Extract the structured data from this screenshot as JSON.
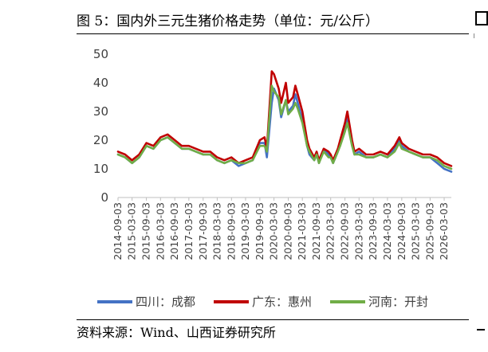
{
  "figure": {
    "title": "图 5：国内外三元生猪价格走势（单位：元/公斤）",
    "source": "资料来源：Wind、山西证券研究所"
  },
  "chart_data": {
    "type": "line",
    "title": "",
    "xlabel": "",
    "ylabel": "",
    "ylim": [
      0,
      50
    ],
    "y_ticks": [
      "0",
      "10",
      "20",
      "30",
      "40",
      "50"
    ],
    "x_ticks": [
      "2014-09-03",
      "2015-03-03",
      "2015-09-03",
      "2016-03-03",
      "2016-09-03",
      "2017-03-03",
      "2017-09-03",
      "2018-03-03",
      "2018-09-03",
      "2019-03-03",
      "2019-09-03",
      "2020-03-03",
      "2020-09-03",
      "2021-03-03",
      "2021-09-03",
      "2022-03-03",
      "2022-09-03",
      "2023-03-03",
      "2023-09-03",
      "2024-03-03",
      "2024-09-03",
      "2025-03-03",
      "2025-09-03",
      "2026-03-03"
    ],
    "x": [
      "2014-09-03",
      "2014-12-03",
      "2015-03-03",
      "2015-06-03",
      "2015-09-03",
      "2015-12-03",
      "2016-03-03",
      "2016-06-03",
      "2016-09-03",
      "2016-12-03",
      "2017-03-03",
      "2017-06-03",
      "2017-09-03",
      "2017-12-03",
      "2018-03-03",
      "2018-06-03",
      "2018-09-03",
      "2018-12-03",
      "2019-03-03",
      "2019-06-03",
      "2019-09-03",
      "2019-11-03",
      "2019-12-03",
      "2020-02-03",
      "2020-03-03",
      "2020-05-03",
      "2020-06-03",
      "2020-08-03",
      "2020-09-03",
      "2020-11-03",
      "2020-12-03",
      "2021-01-03",
      "2021-03-03",
      "2021-05-03",
      "2021-06-03",
      "2021-08-03",
      "2021-09-03",
      "2021-10-03",
      "2021-12-03",
      "2022-02-03",
      "2022-03-03",
      "2022-04-03",
      "2022-06-03",
      "2022-07-03",
      "2022-09-03",
      "2022-10-03",
      "2022-12-03",
      "2023-01-03",
      "2023-03-03",
      "2023-06-03",
      "2023-09-03",
      "2023-12-03",
      "2024-03-03",
      "2024-06-03",
      "2024-08-03",
      "2024-09-03",
      "2024-12-03",
      "2025-03-03",
      "2025-06-03",
      "2025-09-03",
      "2025-12-03",
      "2026-03-03",
      "2026-06-03"
    ],
    "series": [
      {
        "name": "四川：成都",
        "color": "#4472C4",
        "values": [
          15,
          14,
          12,
          14,
          18,
          17,
          20,
          21,
          19,
          17,
          17,
          16,
          15,
          15,
          13,
          12,
          13,
          11,
          12,
          13,
          19,
          19,
          14,
          33,
          38,
          34,
          28,
          34,
          30,
          32,
          36,
          33,
          27,
          18,
          15,
          13,
          15,
          12,
          17,
          15,
          14,
          12,
          16,
          19,
          24,
          28,
          19,
          15,
          16,
          14,
          14,
          15,
          14,
          17,
          20,
          18,
          16,
          15,
          14,
          14,
          12,
          10,
          9
        ]
      },
      {
        "name": "广东：惠州",
        "color": "#C00000",
        "values": [
          16,
          15,
          13,
          15,
          19,
          18,
          21,
          22,
          20,
          18,
          18,
          17,
          16,
          16,
          14,
          13,
          14,
          12,
          13,
          14,
          20,
          21,
          17,
          44,
          43,
          38,
          33,
          40,
          33,
          35,
          39,
          36,
          30,
          20,
          17,
          14,
          16,
          13,
          17,
          16,
          15,
          13,
          17,
          20,
          26,
          30,
          20,
          16,
          17,
          15,
          15,
          16,
          15,
          18,
          21,
          19,
          17,
          16,
          15,
          15,
          14,
          12,
          11
        ]
      },
      {
        "name": "河南：开封",
        "color": "#70AD47",
        "values": [
          15,
          14,
          12,
          14,
          18,
          17,
          20,
          21,
          19,
          17,
          17,
          16,
          15,
          15,
          13,
          12,
          13,
          12,
          12,
          13,
          18,
          18,
          16,
          39,
          37,
          35,
          29,
          34,
          29,
          31,
          33,
          31,
          26,
          18,
          16,
          13,
          15,
          12,
          16,
          14,
          14,
          12,
          16,
          18,
          23,
          26,
          18,
          15,
          15,
          14,
          14,
          15,
          14,
          16,
          19,
          17,
          16,
          15,
          14,
          14,
          13,
          11,
          10
        ]
      }
    ],
    "legend_position": "bottom",
    "grid": false
  }
}
